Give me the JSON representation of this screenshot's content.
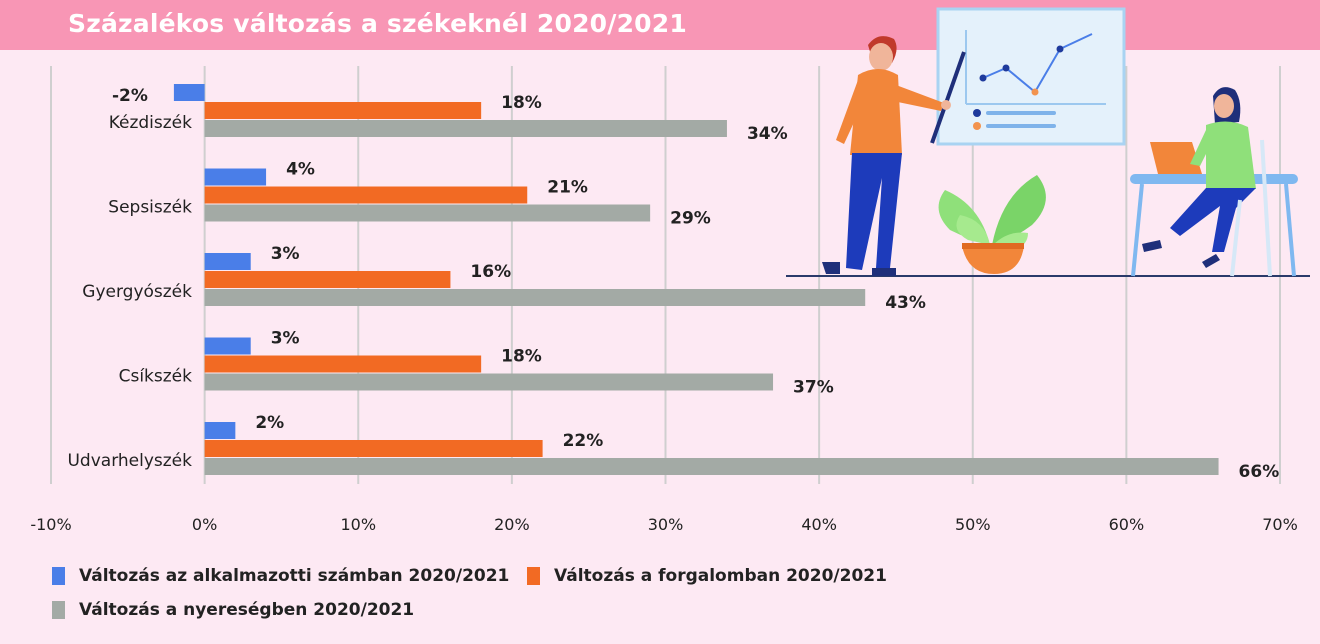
{
  "title": "Százalékos változás a székeknél 2020/2021",
  "colors": {
    "header": "#f896b5",
    "background": "#fde9f3",
    "grid": "#cfcfcf"
  },
  "chart_data": {
    "type": "bar",
    "orientation": "horizontal",
    "title": "Százalékos változás a székeknél 2020/2021",
    "categories": [
      "Kézdiszék",
      "Sepsiszék",
      "Gyergyószék",
      "Csíkszék",
      "Udvarhelyszék"
    ],
    "series": [
      {
        "name": "Változás az alkalmazotti számban 2020/2021",
        "color": "#4a7ee8",
        "values": [
          -2,
          4,
          3,
          3,
          2
        ],
        "labels": [
          "-2%",
          "4%",
          "3%",
          "3%",
          "2%"
        ]
      },
      {
        "name": "Változás a forgalomban 2020/2021",
        "color": "#f26a23",
        "values": [
          18,
          21,
          16,
          18,
          22
        ],
        "labels": [
          "18%",
          "21%",
          "16%",
          "18%",
          "22%"
        ]
      },
      {
        "name": "Változás a nyereségben 2020/2021",
        "color": "#a3aaa5",
        "values": [
          34,
          29,
          43,
          37,
          66
        ],
        "labels": [
          "34%",
          "29%",
          "43%",
          "37%",
          "66%"
        ]
      }
    ],
    "xlim": [
      -10,
      70
    ],
    "xticks": [
      -10,
      0,
      10,
      20,
      30,
      40,
      50,
      60,
      70
    ],
    "xtick_labels": [
      "-10%",
      "0%",
      "10%",
      "20%",
      "30%",
      "40%",
      "50%",
      "60%",
      "70%"
    ],
    "grid": true,
    "legend_position": "bottom-left"
  },
  "illustration": "presenter-with-chart-board-plant-and-laptop-worker"
}
